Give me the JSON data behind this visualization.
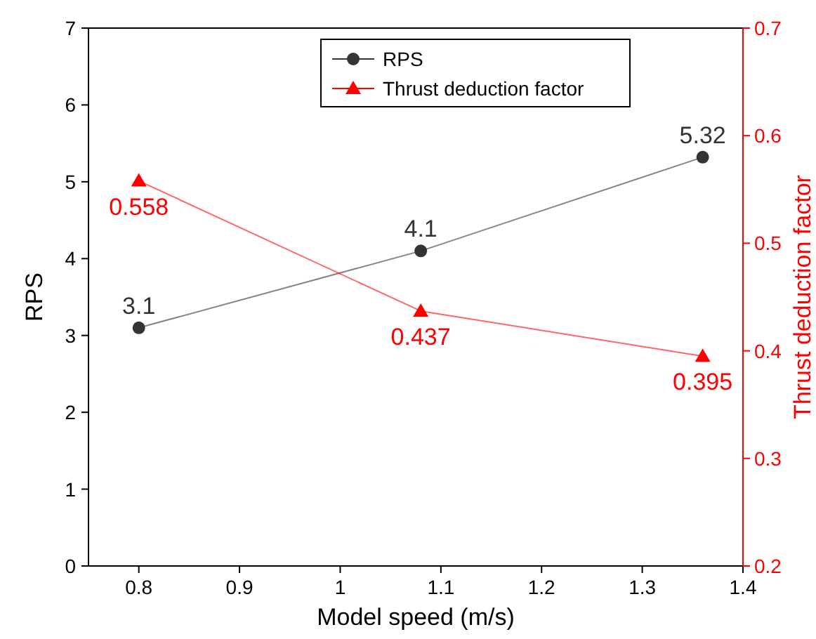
{
  "chart_data": {
    "type": "line",
    "xlabel": "Model speed (m/s)",
    "ylabel": "RPS",
    "y2label": "Thrust deduction factor",
    "x": [
      0.8,
      1.08,
      1.36
    ],
    "series": [
      {
        "name": "RPS",
        "color": "#333333",
        "values": [
          3.1,
          4.1,
          5.32
        ],
        "marker": "circle"
      },
      {
        "name": "Thrust deduction factor",
        "color": "#ff0000",
        "values": [
          0.558,
          0.437,
          0.395
        ],
        "marker": "triangle",
        "axis": "y2"
      }
    ],
    "xlim": [
      0.75,
      1.4
    ],
    "xticks": [
      0.8,
      0.9,
      1.0,
      1.1,
      1.2,
      1.3,
      1.4
    ],
    "ylim": [
      0,
      7
    ],
    "yticks": [
      0,
      1,
      2,
      3,
      4,
      5,
      6,
      7
    ],
    "y2lim": [
      0.2,
      0.7
    ],
    "y2ticks": [
      0.2,
      0.3,
      0.4,
      0.5,
      0.6,
      0.7
    ],
    "data_labels": true,
    "legend": "top",
    "grid": false
  }
}
